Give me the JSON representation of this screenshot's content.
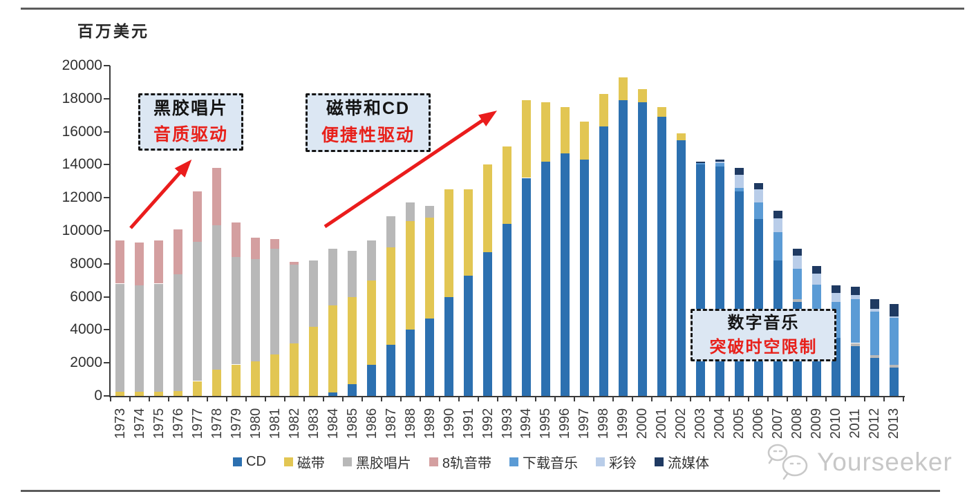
{
  "unit_label": "百万美元",
  "annotations": [
    {
      "id": "vinyl",
      "line1": "黑胶唱片",
      "line2": "音质驱动"
    },
    {
      "id": "cd",
      "line1": "磁带和CD",
      "line2": "便捷性驱动"
    },
    {
      "id": "digital",
      "line1": "数字音乐",
      "line2": "突破时空限制"
    }
  ],
  "watermark": {
    "text": "Yourseeker",
    "icon": "chat-bubbles-logo"
  },
  "colors": {
    "accent_red": "#ea1c1c",
    "annotation_bg": "#dce7f3",
    "axis": "#3a3a3a",
    "watermark_gray": "#c7c7c7"
  },
  "chart_data": {
    "type": "bar",
    "stacked": true,
    "unit_label": "百万美元",
    "xlabel": "",
    "ylabel": "百万美元",
    "ylim": [
      0,
      20000
    ],
    "y_ticks": [
      0,
      2000,
      4000,
      6000,
      8000,
      10000,
      12000,
      14000,
      16000,
      18000,
      20000
    ],
    "grid": false,
    "legend_position": "bottom",
    "categories": [
      1973,
      1974,
      1975,
      1976,
      1977,
      1978,
      1979,
      1980,
      1981,
      1982,
      1983,
      1984,
      1985,
      1986,
      1987,
      1988,
      1989,
      1990,
      1991,
      1992,
      1993,
      1994,
      1995,
      1996,
      1997,
      1998,
      1999,
      2000,
      2001,
      2002,
      2003,
      2004,
      2005,
      2006,
      2007,
      2008,
      2009,
      2010,
      2011,
      2012,
      2013
    ],
    "series": [
      {
        "name": "CD",
        "color": "#2c70b0",
        "values": [
          0,
          0,
          0,
          0,
          0,
          0,
          0,
          0,
          0,
          0,
          0,
          200,
          700,
          1900,
          3100,
          4000,
          4700,
          6000,
          7300,
          8700,
          10400,
          13200,
          14200,
          14700,
          14300,
          16300,
          17900,
          17800,
          16900,
          15500,
          14000,
          13900,
          12400,
          10700,
          8200,
          5700,
          4100,
          3500,
          3000,
          2300,
          1700
        ]
      },
      {
        "name": "磁带",
        "color": "#e2c653",
        "values": [
          250,
          250,
          250,
          280,
          900,
          1600,
          1900,
          2100,
          2500,
          3200,
          4200,
          5300,
          5300,
          5100,
          5900,
          6600,
          6100,
          6500,
          5200,
          5300,
          4700,
          4700,
          3600,
          2800,
          2300,
          2000,
          1400,
          800,
          600,
          400,
          0,
          0,
          0,
          0,
          0,
          0,
          0,
          0,
          0,
          0,
          0
        ]
      },
      {
        "name": "黑胶唱片",
        "color": "#b8b8b8",
        "values": [
          6550,
          6450,
          6550,
          7070,
          8420,
          8740,
          6500,
          6200,
          6400,
          4750,
          4000,
          3400,
          2800,
          2400,
          1900,
          1100,
          700,
          0,
          0,
          0,
          0,
          0,
          0,
          0,
          0,
          0,
          0,
          0,
          0,
          0,
          0,
          0,
          0,
          0,
          0,
          150,
          0,
          0,
          200,
          160,
          170
        ]
      },
      {
        "name": "8轨音带",
        "color": "#d49fa0",
        "values": [
          2600,
          2600,
          2600,
          2750,
          3080,
          3460,
          2100,
          1300,
          600,
          150,
          0,
          0,
          0,
          0,
          0,
          0,
          0,
          0,
          0,
          0,
          0,
          0,
          0,
          0,
          0,
          0,
          0,
          0,
          0,
          0,
          0,
          0,
          0,
          0,
          0,
          0,
          0,
          0,
          0,
          0,
          0
        ]
      },
      {
        "name": "下载音乐",
        "color": "#5b9bd5",
        "values": [
          0,
          0,
          0,
          0,
          0,
          0,
          0,
          0,
          0,
          0,
          0,
          0,
          0,
          0,
          0,
          0,
          0,
          0,
          0,
          0,
          0,
          0,
          0,
          0,
          0,
          0,
          0,
          0,
          0,
          0,
          100,
          200,
          200,
          1000,
          1700,
          1850,
          2650,
          2200,
          2650,
          2650,
          2850
        ]
      },
      {
        "name": "彩铃",
        "color": "#b9cde9",
        "values": [
          0,
          0,
          0,
          0,
          0,
          0,
          0,
          0,
          0,
          0,
          0,
          0,
          0,
          0,
          0,
          0,
          0,
          0,
          0,
          0,
          0,
          0,
          0,
          0,
          0,
          0,
          0,
          0,
          0,
          0,
          0,
          100,
          800,
          800,
          850,
          800,
          650,
          550,
          250,
          150,
          100
        ]
      },
      {
        "name": "流媒体",
        "color": "#1f3a62",
        "values": [
          0,
          0,
          0,
          0,
          0,
          0,
          0,
          0,
          0,
          0,
          0,
          0,
          0,
          0,
          0,
          0,
          0,
          0,
          0,
          0,
          0,
          0,
          0,
          0,
          0,
          0,
          0,
          0,
          0,
          0,
          100,
          100,
          400,
          400,
          450,
          400,
          450,
          450,
          500,
          600,
          750
        ]
      }
    ]
  }
}
